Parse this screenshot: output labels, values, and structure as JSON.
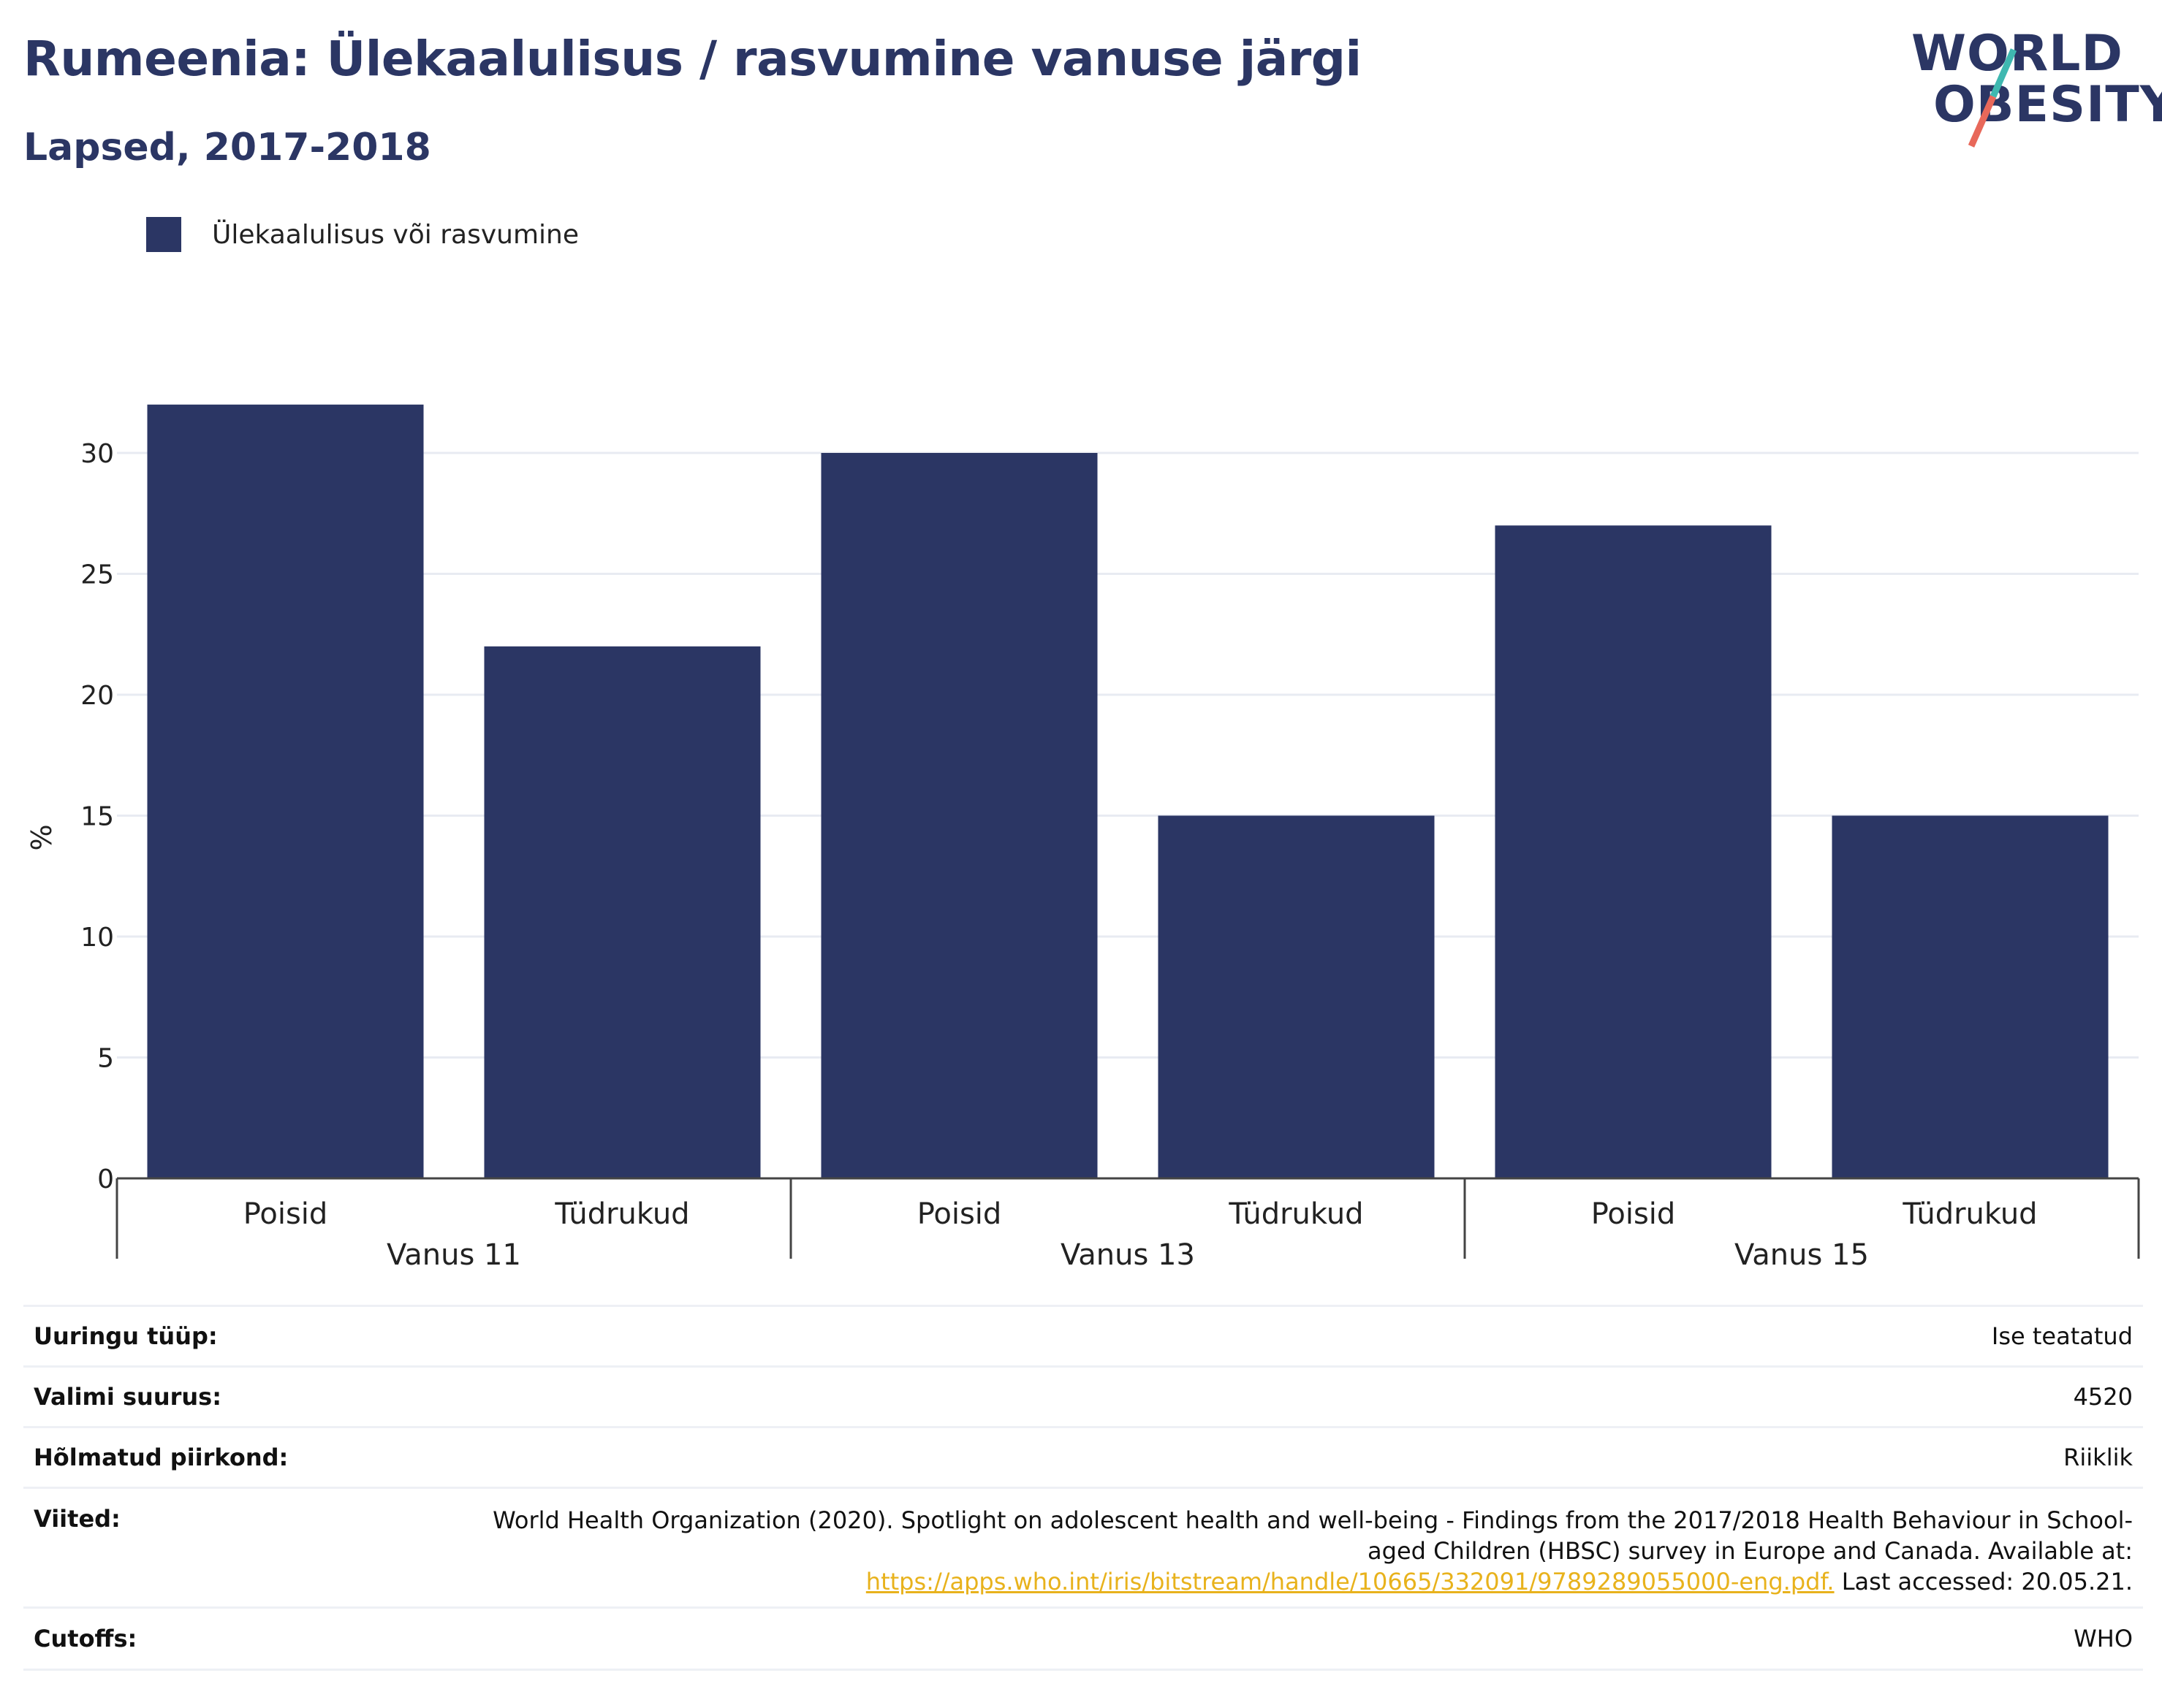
{
  "header": {
    "title": "Rumeenia: Ülekaalulisus / rasvumine vanuse järgi",
    "subtitle": "Lapsed, 2017-2018"
  },
  "logo": {
    "line1": "WORLD",
    "line2": "OBESITY"
  },
  "legend": {
    "label": "Ülekaalulisus või rasvumine"
  },
  "colors": {
    "bar": "#2b3664",
    "accent_teal": "#3fb8b0",
    "accent_coral": "#e8685a",
    "link": "#e8b21c"
  },
  "chart_data": {
    "type": "bar",
    "ylabel": "%",
    "ylim": [
      0,
      32.5
    ],
    "yticks": [
      0,
      5,
      10,
      15,
      20,
      25,
      30
    ],
    "groups": [
      "Vanus 11",
      "Vanus 13",
      "Vanus 15"
    ],
    "categories": [
      "Poisid",
      "Tüdrukud",
      "Poisid",
      "Tüdrukud",
      "Poisid",
      "Tüdrukud"
    ],
    "series": [
      {
        "name": "Ülekaalulisus või rasvumine",
        "values": [
          32,
          22,
          30,
          15,
          27,
          15
        ]
      }
    ],
    "grid": true,
    "legend_position": "top-left"
  },
  "info": {
    "survey_type_label": "Uuringu tüüp:",
    "survey_type_value": "Ise teatatud",
    "sample_size_label": "Valimi suurus:",
    "sample_size_value": "4520",
    "region_label": "Hõlmatud piirkond:",
    "region_value": "Riiklik",
    "references_label": "Viited:",
    "references_text": "World Health Organization (2020). Spotlight on adolescent health and well-being - Findings from the 2017/2018 Health Behaviour in School-aged Children (HBSC) survey in Europe and Canada. Available at:",
    "references_link": "https://apps.who.int/iris/bitstream/handle/10665/332091/9789289055000-eng.pdf.",
    "references_accessed": "Last accessed: 20.05.21.",
    "cutoffs_label": "Cutoffs:",
    "cutoffs_value": "WHO"
  }
}
